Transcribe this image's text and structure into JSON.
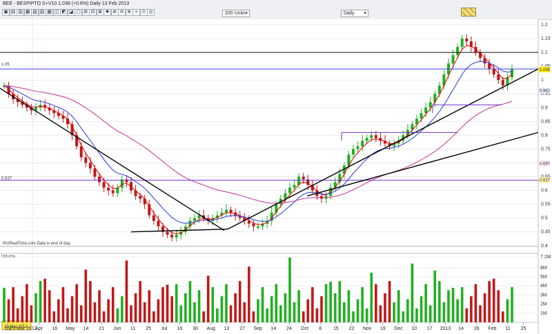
{
  "toolbar": {
    "title": "BEE - BESPIPTO S+V10  1.038 (+0.6%)  Daily  13 Feb 2013",
    "buttons": [
      "▣",
      "▤",
      "▥",
      "▦",
      "▧",
      "▨",
      "▩",
      "◫",
      "◩",
      "◪",
      "▢",
      "⊞",
      "⊟",
      "⊠",
      "✚",
      "⊕",
      "⊖",
      "⊗",
      "⌖",
      "⊙",
      "◎"
    ],
    "period_select": "200 Units",
    "interval_select": "Daily"
  },
  "colors": {
    "up": "#20b020",
    "down": "#c01818",
    "ema_short": "#e00000",
    "ema_mid": "#3a49d9",
    "ema_long": "#c8409a",
    "trend": "#000000",
    "horizontal_blue": "#3b3fe6",
    "horizontal_black": "#111111",
    "horizontal_purple": "#6b2cc8"
  },
  "price_axis": {
    "ticks": [
      "1.2",
      "1.15",
      "1.1",
      "1.05",
      "1",
      "0.95",
      "0.9",
      "0.85",
      "0.8",
      "0.75",
      "0.7",
      "0.65",
      "0.6",
      "0.55",
      "0.5",
      "0.45",
      "0.4"
    ],
    "labels": {
      "last": "1.038",
      "ema_short": "0.962",
      "ema_long": "0.697",
      "support": "0.637"
    },
    "left_labels": [
      "1.05",
      "0.637"
    ]
  },
  "volume_axis": {
    "title": "Volume",
    "ticks": [
      "7.2M",
      "6M",
      "5M",
      "4M",
      "3M",
      "2M",
      "1M"
    ]
  },
  "x_axis": {
    "ticks": [
      "09",
      "23 Mar 2012",
      "Apr",
      "16",
      "May",
      "14",
      "21",
      "Jun",
      "11",
      "25",
      "Jul",
      "16",
      "30",
      "Aug",
      "13",
      "27",
      "Sep",
      "14",
      "24",
      "Oct",
      "8",
      "15",
      "22",
      "Nov",
      "19",
      "Dec",
      "10",
      "17",
      "2013",
      "14",
      "28",
      "Feb",
      "11",
      "25"
    ]
  },
  "footer_note": "ProRealTime.com  Data is end of day",
  "chart_data": {
    "type": "candlestick",
    "title": "BEE - BESPIPTO S+V10 Daily",
    "ylim": [
      0.4,
      1.2
    ],
    "series": [
      {
        "name": "price",
        "values": [
          0.98,
          0.95,
          0.93,
          0.92,
          0.91,
          0.9,
          0.89,
          0.9,
          0.91,
          0.9,
          0.89,
          0.88,
          0.87,
          0.86,
          0.84,
          0.8,
          0.76,
          0.72,
          0.7,
          0.68,
          0.65,
          0.63,
          0.61,
          0.6,
          0.59,
          0.61,
          0.64,
          0.63,
          0.6,
          0.58,
          0.57,
          0.55,
          0.51,
          0.49,
          0.47,
          0.45,
          0.44,
          0.43,
          0.44,
          0.45,
          0.47,
          0.49,
          0.5,
          0.51,
          0.5,
          0.49,
          0.5,
          0.51,
          0.52,
          0.53,
          0.52,
          0.51,
          0.5,
          0.49,
          0.48,
          0.47,
          0.47,
          0.48,
          0.49,
          0.52,
          0.55,
          0.57,
          0.59,
          0.61,
          0.62,
          0.65,
          0.64,
          0.62,
          0.6,
          0.58,
          0.57,
          0.58,
          0.61,
          0.63,
          0.66,
          0.69,
          0.73,
          0.75,
          0.76,
          0.78,
          0.79,
          0.8,
          0.79,
          0.78,
          0.77,
          0.76,
          0.77,
          0.78,
          0.8,
          0.82,
          0.84,
          0.86,
          0.88,
          0.9,
          0.92,
          0.95,
          0.98,
          1.02,
          1.06,
          1.09,
          1.12,
          1.15,
          1.14,
          1.12,
          1.1,
          1.08,
          1.06,
          1.04,
          1.02,
          1.0,
          0.98,
          1.01,
          1.04
        ]
      },
      {
        "name": "ema_short",
        "values": []
      },
      {
        "name": "ema_mid",
        "values": []
      },
      {
        "name": "ema_long",
        "values": []
      }
    ]
  }
}
